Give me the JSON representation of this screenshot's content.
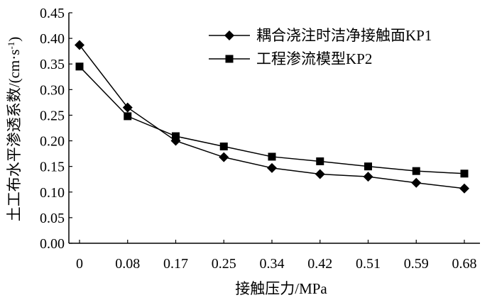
{
  "chart_data": {
    "type": "line",
    "categories": [
      "0",
      "0.08",
      "0.17",
      "0.25",
      "0.34",
      "0.42",
      "0.51",
      "0.59",
      "0.68"
    ],
    "series": [
      {
        "name": "耦合浇注时洁净接触面KP1",
        "marker": "diamond",
        "values": [
          0.387,
          0.265,
          0.2,
          0.168,
          0.147,
          0.135,
          0.13,
          0.118,
          0.107
        ]
      },
      {
        "name": "工程渗流模型KP2",
        "marker": "square",
        "values": [
          0.345,
          0.248,
          0.209,
          0.189,
          0.169,
          0.16,
          0.15,
          0.141,
          0.136
        ]
      }
    ],
    "xlabel": "接触压力/MPa",
    "ylabel": "土工布水平渗透系数/(cm·s",
    "ylabel_sup": "-1",
    "ylabel_close": ")",
    "ylim": [
      0,
      0.45
    ],
    "yticks": [
      "0.00",
      "0.05",
      "0.10",
      "0.15",
      "0.20",
      "0.25",
      "0.30",
      "0.35",
      "0.40",
      "0.45"
    ],
    "grid": false,
    "legend_position": "top-right",
    "colors": {
      "line": "#000000",
      "axis": "#000000"
    }
  }
}
